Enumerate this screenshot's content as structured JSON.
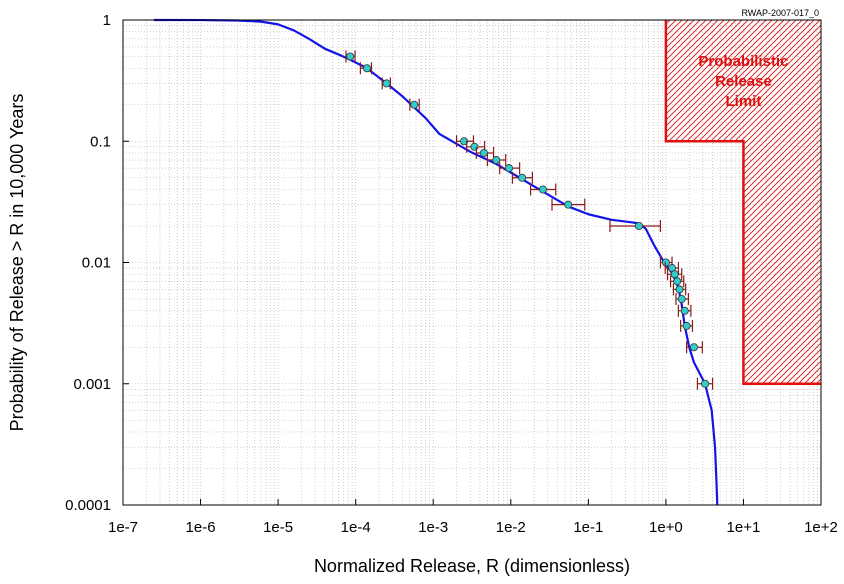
{
  "chart_data": {
    "type": "line",
    "title": "",
    "id_label": "RWAP-2007-017_0",
    "xlabel": "Normalized Release, R (dimensionless)",
    "ylabel": "Probability of Release > R in 10,000 Years",
    "x_scale": "log",
    "y_scale": "log",
    "xlim": [
      1e-07,
      100
    ],
    "ylim": [
      0.0001,
      1
    ],
    "x_tick_labels": [
      "1e-7",
      "1e-6",
      "1e-5",
      "1e-4",
      "1e-3",
      "1e-2",
      "1e-1",
      "1e+0",
      "1e+1",
      "1e+2"
    ],
    "x_tick_values": [
      1e-07,
      1e-06,
      1e-05,
      0.0001,
      0.001,
      0.01,
      0.1,
      1,
      10,
      100
    ],
    "y_tick_labels": [
      "0.0001",
      "0.001",
      "0.01",
      "0.1",
      "1"
    ],
    "y_tick_values": [
      0.0001,
      0.001,
      0.01,
      0.1,
      1
    ],
    "grid": true,
    "colors": {
      "curve": "#1414e6",
      "marker_fill": "#33cccc",
      "error_bar": "#8b1a1a",
      "limit": "#e01010",
      "grid": "#b0b0b0"
    },
    "curve": {
      "x": [
        2.5e-07,
        1e-06,
        3e-06,
        6e-06,
        1e-05,
        1.6e-05,
        2.5e-05,
        4e-05,
        6e-05,
        8.5e-05,
        0.00014,
        0.00025,
        0.0004,
        0.00057,
        0.0008,
        0.0012,
        0.003,
        0.0065,
        0.013,
        0.025,
        0.055,
        0.1,
        0.2,
        0.35,
        0.45,
        0.55,
        0.7,
        0.95,
        1.2,
        1.45,
        1.6,
        1.75,
        2.0,
        2.3,
        3.2,
        3.9,
        4.3,
        4.5,
        4.6
      ],
      "y": [
        1,
        0.999,
        0.99,
        0.97,
        0.92,
        0.82,
        0.7,
        0.58,
        0.52,
        0.47,
        0.4,
        0.3,
        0.235,
        0.19,
        0.155,
        0.115,
        0.082,
        0.065,
        0.05,
        0.039,
        0.029,
        0.025,
        0.0225,
        0.0215,
        0.021,
        0.019,
        0.014,
        0.01,
        0.0082,
        0.0062,
        0.0045,
        0.003,
        0.002,
        0.0015,
        0.001,
        0.0006,
        0.0003,
        0.00015,
        0.0001
      ]
    },
    "points": [
      {
        "x": 8.5e-05,
        "y": 0.5,
        "xlo": 7.5e-05,
        "xhi": 9.8e-05
      },
      {
        "x": 0.00014,
        "y": 0.4,
        "xlo": 0.000115,
        "xhi": 0.00016
      },
      {
        "x": 0.00025,
        "y": 0.3,
        "xlo": 0.00022,
        "xhi": 0.00028
      },
      {
        "x": 0.00057,
        "y": 0.2,
        "xlo": 0.0005,
        "xhi": 0.00066
      },
      {
        "x": 0.0025,
        "y": 0.1,
        "xlo": 0.002,
        "xhi": 0.0033
      },
      {
        "x": 0.0034,
        "y": 0.09,
        "xlo": 0.0027,
        "xhi": 0.0046
      },
      {
        "x": 0.0045,
        "y": 0.08,
        "xlo": 0.0036,
        "xhi": 0.006
      },
      {
        "x": 0.0065,
        "y": 0.07,
        "xlo": 0.005,
        "xhi": 0.0086
      },
      {
        "x": 0.0095,
        "y": 0.06,
        "xlo": 0.0072,
        "xhi": 0.013
      },
      {
        "x": 0.014,
        "y": 0.05,
        "xlo": 0.0105,
        "xhi": 0.019
      },
      {
        "x": 0.026,
        "y": 0.04,
        "xlo": 0.018,
        "xhi": 0.038
      },
      {
        "x": 0.055,
        "y": 0.03,
        "xlo": 0.034,
        "xhi": 0.09
      },
      {
        "x": 0.45,
        "y": 0.02,
        "xlo": 0.19,
        "xhi": 0.85
      },
      {
        "x": 1.0,
        "y": 0.01,
        "xlo": 0.85,
        "xhi": 1.2
      },
      {
        "x": 1.2,
        "y": 0.009,
        "xlo": 0.98,
        "xhi": 1.45
      },
      {
        "x": 1.3,
        "y": 0.008,
        "xlo": 1.05,
        "xhi": 1.6
      },
      {
        "x": 1.4,
        "y": 0.007,
        "xlo": 1.15,
        "xhi": 1.7
      },
      {
        "x": 1.5,
        "y": 0.006,
        "xlo": 1.25,
        "xhi": 1.8
      },
      {
        "x": 1.6,
        "y": 0.005,
        "xlo": 1.35,
        "xhi": 1.95
      },
      {
        "x": 1.75,
        "y": 0.004,
        "xlo": 1.45,
        "xhi": 2.1
      },
      {
        "x": 1.85,
        "y": 0.003,
        "xlo": 1.55,
        "xhi": 2.2
      },
      {
        "x": 2.3,
        "y": 0.002,
        "xlo": 1.85,
        "xhi": 2.95
      },
      {
        "x": 3.2,
        "y": 0.001,
        "xlo": 2.55,
        "xhi": 4.0
      }
    ],
    "limit": {
      "label_lines": [
        "Probabilistic",
        "Release",
        "Limit"
      ],
      "steps": [
        {
          "x": 1,
          "y": 0.1
        },
        {
          "x": 10,
          "y": 0.001
        }
      ],
      "x_end": 100,
      "y_top": 1
    }
  }
}
